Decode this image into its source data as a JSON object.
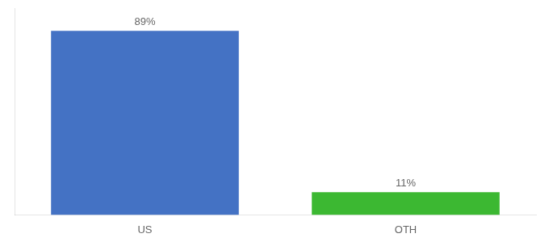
{
  "chart_data": {
    "type": "bar",
    "categories": [
      "US",
      "OTH"
    ],
    "values": [
      89,
      11
    ],
    "value_labels": [
      "89%",
      "11%"
    ],
    "colors": [
      "#4472c4",
      "#3cb832"
    ],
    "data_labels": true,
    "ylim": [
      0,
      100
    ],
    "grid": false,
    "tick_labels": "x"
  }
}
